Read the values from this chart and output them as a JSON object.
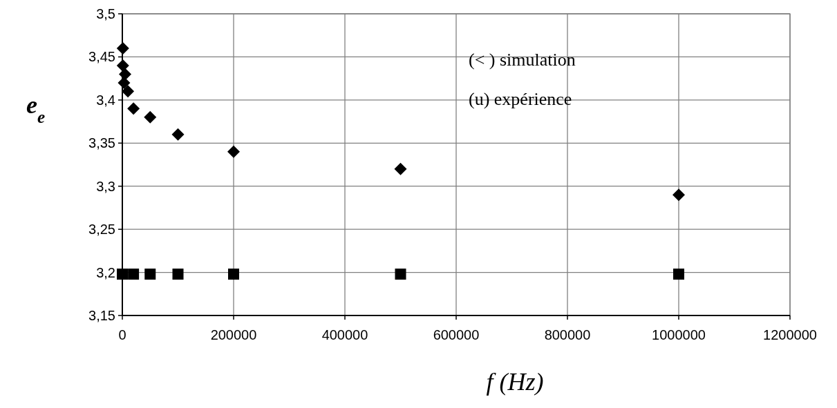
{
  "chart_data": {
    "type": "scatter",
    "xlabel": "f (Hz)",
    "ylabel": "e$_{e}$",
    "series": [
      {
        "color": "#000000",
        "marker": "diamond",
        "x": [
          1000,
          1000,
          5000,
          3000,
          10000,
          20000,
          50000,
          100000,
          200000,
          500000,
          1000000
        ],
        "values": [
          3.46,
          3.44,
          3.43,
          3.42,
          3.41,
          3.39,
          3.38,
          3.36,
          3.34,
          3.32,
          3.29
        ]
      },
      {
        "color": "#000000",
        "marker": "square",
        "x": [
          0,
          20000,
          50000,
          100000,
          200000,
          500000,
          1000000
        ],
        "values": [
          3.198,
          3.198,
          3.198,
          3.198,
          3.198,
          3.198,
          3.198
        ]
      }
    ],
    "xlim": [
      0,
      1200000
    ],
    "xticks": [
      0,
      200000,
      400000,
      600000,
      800000,
      1000000,
      1200000
    ],
    "ylim": [
      3.15,
      3.5
    ],
    "yticks": [
      {
        "value": 3.15,
        "label": "3,15"
      },
      {
        "value": 3.2,
        "label": "3,2"
      },
      {
        "value": 3.25,
        "label": "3,25"
      },
      {
        "value": 3.3,
        "label": "3,3"
      },
      {
        "value": 3.35,
        "label": "3,35"
      },
      {
        "value": 3.4,
        "label": "3,4"
      },
      {
        "value": 3.45,
        "label": "3,45"
      },
      {
        "value": 3.5,
        "label": "3,5"
      }
    ],
    "grid": true,
    "annotations": [
      "(< )  simulation",
      "(u)  expérience"
    ]
  }
}
